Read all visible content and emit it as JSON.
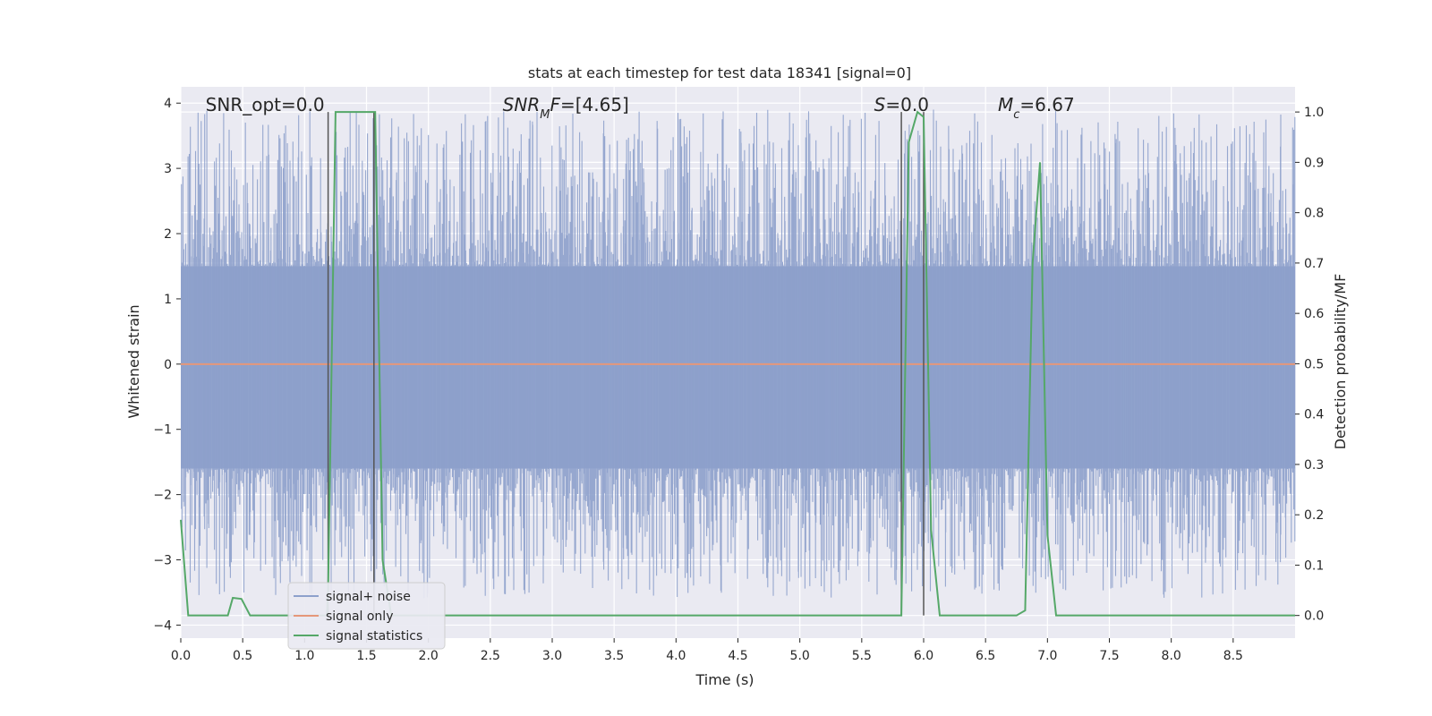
{
  "chart_data": {
    "type": "line",
    "title": "stats at each timestep for test data 18341 [signal=0]",
    "xlabel": "Time (s)",
    "ylabel_left": "Whitened strain",
    "ylabel_right": "Detection probability/MF",
    "xlim": [
      0.0,
      9.0
    ],
    "ylim_left": [
      -4.2,
      4.25
    ],
    "ylim_right": [
      -0.045,
      1.05
    ],
    "x_ticks": [
      0.0,
      0.5,
      1.0,
      1.5,
      2.0,
      2.5,
      3.0,
      3.5,
      4.0,
      4.5,
      5.0,
      5.5,
      6.0,
      6.5,
      7.0,
      7.5,
      8.0,
      8.5
    ],
    "x_tick_labels": [
      "0.0",
      "0.5",
      "1.0",
      "1.5",
      "2.0",
      "2.5",
      "3.0",
      "3.5",
      "4.0",
      "4.5",
      "5.0",
      "5.5",
      "6.0",
      "6.5",
      "7.0",
      "7.5",
      "8.0",
      "8.5"
    ],
    "y_left_ticks": [
      -4,
      -3,
      -2,
      -1,
      0,
      1,
      2,
      3,
      4
    ],
    "y_left_tick_labels": [
      "−4",
      "−3",
      "−2",
      "−1",
      "0",
      "1",
      "2",
      "3",
      "4"
    ],
    "y_right_ticks": [
      0.0,
      0.1,
      0.2,
      0.3,
      0.4,
      0.5,
      0.6,
      0.7,
      0.8,
      0.9,
      1.0
    ],
    "y_right_tick_labels": [
      "0.0",
      "0.1",
      "0.2",
      "0.3",
      "0.4",
      "0.5",
      "0.6",
      "0.7",
      "0.8",
      "0.9",
      "1.0"
    ],
    "grid": true,
    "legend_position": "lower-left",
    "annotations": [
      {
        "text": "SNR_opt=0.0",
        "x": 0.2
      },
      {
        "text": "SNR_MF=[4.65]",
        "x": 2.6
      },
      {
        "text": "S=0.0",
        "x": 5.6
      },
      {
        "text": "M_c=6.67",
        "x": 6.6
      }
    ],
    "vertical_lines": [
      1.19,
      1.56,
      5.82,
      6.0
    ],
    "series": [
      {
        "name": "signal+ noise",
        "axis": "left",
        "color": "#8da0cb",
        "kind": "noise",
        "band_min": -1.6,
        "band_max": 1.5,
        "peak_max": 3.9,
        "peak_min": -3.6
      },
      {
        "name": "signal only",
        "axis": "left",
        "color": "#e5977a",
        "x": [
          0.0,
          9.0
        ],
        "y": [
          0.0,
          0.0
        ]
      },
      {
        "name": "signal statistics",
        "axis": "right",
        "color": "#55a868",
        "x": [
          0.0,
          0.06,
          0.12,
          0.38,
          0.42,
          0.49,
          0.56,
          1.18,
          1.19,
          1.25,
          1.57,
          1.63,
          1.7,
          5.82,
          5.88,
          5.95,
          6.0,
          6.06,
          6.13,
          6.75,
          6.82,
          6.88,
          6.94,
          7.0,
          7.07,
          9.0
        ],
        "y": [
          0.19,
          0.0,
          0.0,
          0.0,
          0.035,
          0.033,
          0.0,
          0.0,
          0.05,
          1.0,
          1.0,
          0.11,
          0.0,
          0.0,
          0.94,
          1.0,
          0.99,
          0.17,
          0.0,
          0.0,
          0.01,
          0.7,
          0.9,
          0.16,
          0.0,
          0.0
        ]
      }
    ]
  }
}
